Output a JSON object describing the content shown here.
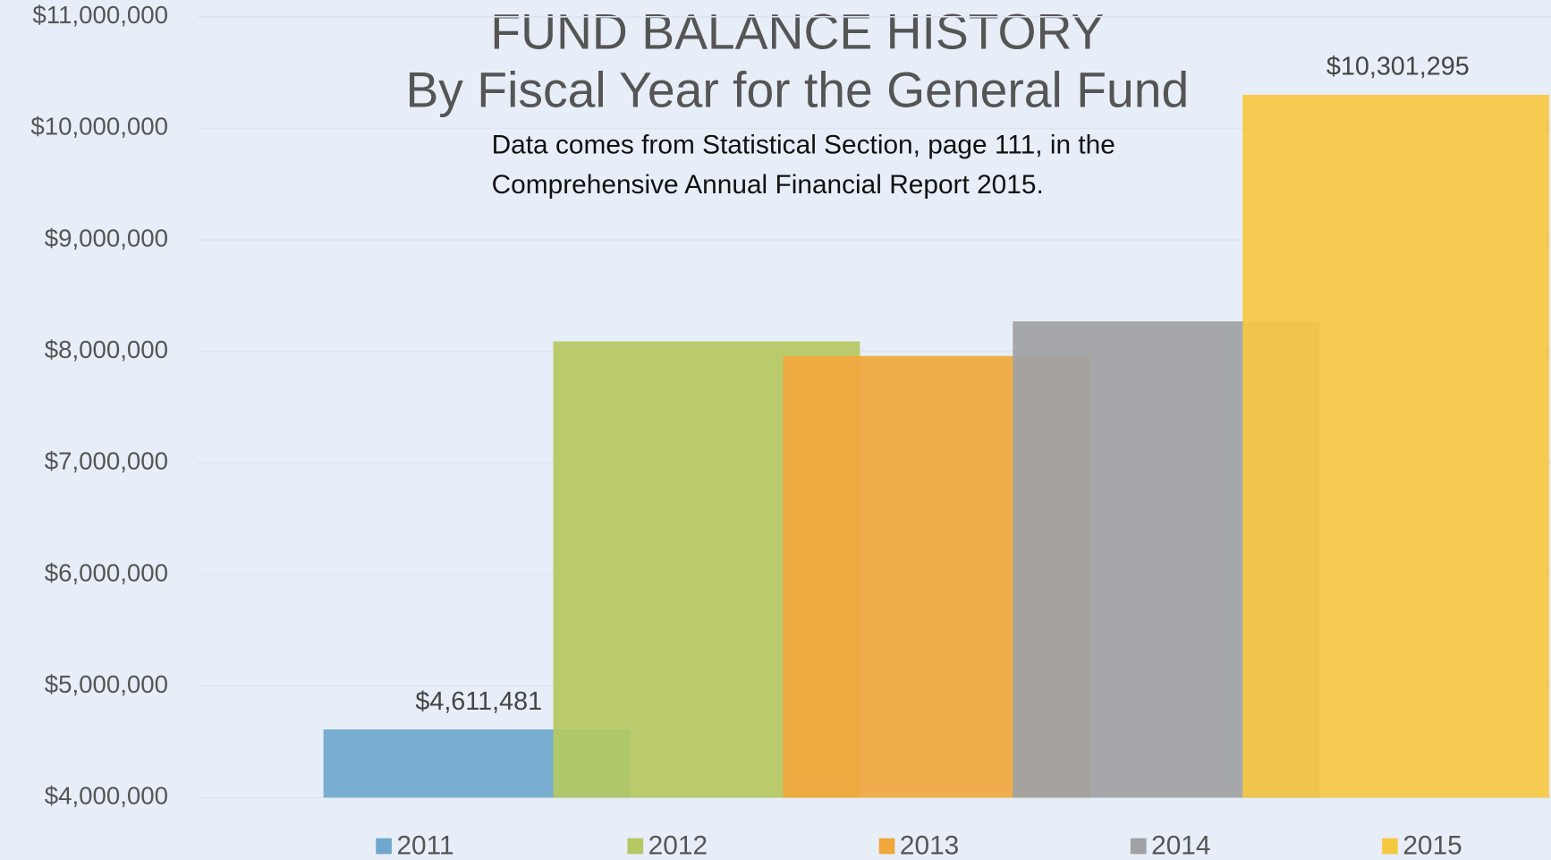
{
  "chart_data": {
    "type": "bar",
    "title": "FUND BALANCE HISTORY",
    "subtitle": "By Fiscal Year for the General Fund",
    "annotation": [
      "Data comes from Statistical Section, page 111, in the",
      "Comprehensive Annual Financial Report 2015."
    ],
    "series": [
      {
        "name": "2011",
        "color": "#6fa8cc",
        "values": [
          4611481
        ],
        "value_labels": [
          "$4,611,481"
        ]
      },
      {
        "name": "2012",
        "color": "#b5c862",
        "values": [
          8090000
        ]
      },
      {
        "name": "2013",
        "color": "#f0a73c",
        "values": [
          7960000
        ]
      },
      {
        "name": "2014",
        "color": "#9fa1a4",
        "values": [
          8270000
        ]
      },
      {
        "name": "2015",
        "color": "#f5c842",
        "values": [
          10301295
        ],
        "value_labels": [
          "$10,301,295"
        ]
      }
    ],
    "ylim": [
      4000000,
      11000000
    ],
    "yticks": [
      {
        "value": 4000000,
        "label": "$4,000,000"
      },
      {
        "value": 5000000,
        "label": "$5,000,000"
      },
      {
        "value": 6000000,
        "label": "$6,000,000"
      },
      {
        "value": 7000000,
        "label": "$7,000,000"
      },
      {
        "value": 8000000,
        "label": "$8,000,000"
      },
      {
        "value": 9000000,
        "label": "$9,000,000"
      },
      {
        "value": 10000000,
        "label": "$10,000,000"
      },
      {
        "value": 11000000,
        "label": "$11,000,000"
      }
    ],
    "grid": true
  }
}
